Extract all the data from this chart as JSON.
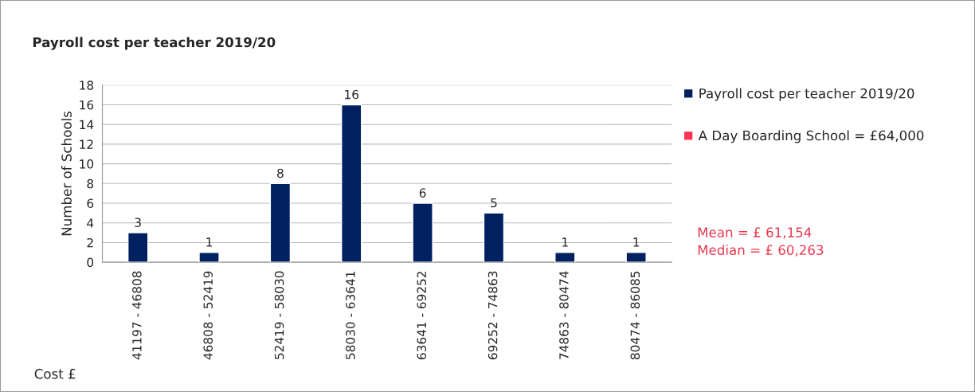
{
  "chart_data": {
    "type": "bar",
    "title": "Payroll cost per teacher 2019/20",
    "xlabel": "Cost £",
    "ylabel": "Number of Schools",
    "categories": [
      "41197 - 46808",
      "46808 - 52419",
      "52419 - 58030",
      "58030 - 63641",
      "63641 - 69252",
      "69252 - 74863",
      "74863 - 80474",
      "80474 - 86085"
    ],
    "series": [
      {
        "name": "Payroll cost per teacher 2019/20",
        "color": "#002060",
        "values": [
          3,
          1,
          8,
          16,
          6,
          5,
          1,
          1
        ]
      },
      {
        "name": "A Day Boarding School = £64,000",
        "color": "#ff3355",
        "values": [
          null,
          null,
          null,
          null,
          null,
          null,
          null,
          null
        ]
      }
    ],
    "ylim": [
      0,
      18
    ],
    "yticks": [
      0,
      2,
      4,
      6,
      8,
      10,
      12,
      14,
      16,
      18
    ],
    "grid": "y",
    "legend": "right",
    "data_labels": true,
    "annotations": [
      "Mean = £ 61,154",
      "Median = £ 60,263"
    ]
  }
}
